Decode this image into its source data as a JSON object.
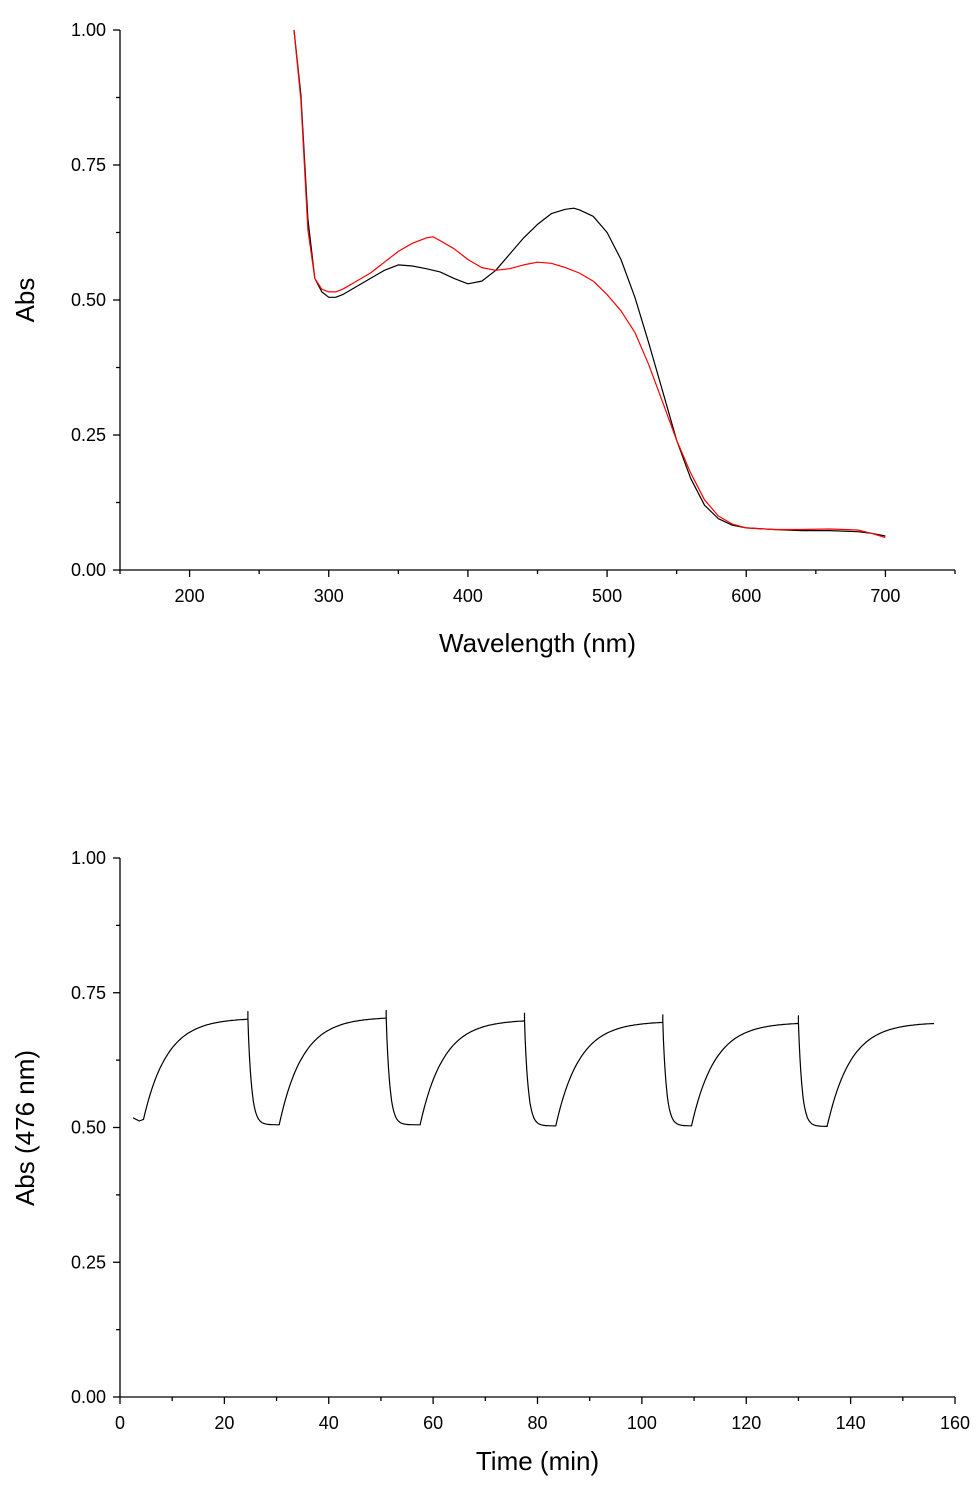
{
  "chart_data": [
    {
      "type": "line",
      "xlabel": "Wavelength (nm)",
      "ylabel": "Abs",
      "xlim": [
        150,
        750
      ],
      "ylim": [
        0,
        1
      ],
      "xticks": [
        "200",
        "300",
        "400",
        "500",
        "600",
        "700"
      ],
      "yticks": [
        "0.00",
        "0.25",
        "0.50",
        "0.75",
        "1.00"
      ],
      "grid": false,
      "series": [
        {
          "color": "#000000",
          "x": [
            275,
            280,
            285,
            290,
            295,
            300,
            305,
            310,
            320,
            330,
            340,
            350,
            360,
            370,
            380,
            390,
            400,
            410,
            420,
            430,
            440,
            450,
            460,
            470,
            476,
            480,
            490,
            500,
            510,
            520,
            530,
            540,
            550,
            560,
            570,
            580,
            590,
            600,
            620,
            640,
            660,
            680,
            690,
            700
          ],
          "y": [
            1.0,
            0.88,
            0.65,
            0.54,
            0.515,
            0.505,
            0.505,
            0.51,
            0.525,
            0.54,
            0.555,
            0.565,
            0.563,
            0.558,
            0.552,
            0.54,
            0.53,
            0.535,
            0.555,
            0.585,
            0.615,
            0.64,
            0.66,
            0.668,
            0.67,
            0.667,
            0.655,
            0.625,
            0.575,
            0.505,
            0.42,
            0.33,
            0.24,
            0.17,
            0.12,
            0.095,
            0.083,
            0.078,
            0.075,
            0.073,
            0.073,
            0.071,
            0.068,
            0.063
          ]
        },
        {
          "color": "#ff0000",
          "x": [
            275,
            280,
            285,
            290,
            295,
            300,
            305,
            310,
            320,
            330,
            340,
            350,
            360,
            370,
            375,
            380,
            390,
            400,
            410,
            420,
            430,
            440,
            450,
            460,
            470,
            480,
            490,
            500,
            510,
            520,
            530,
            540,
            550,
            560,
            570,
            580,
            590,
            600,
            620,
            640,
            660,
            680,
            690,
            700
          ],
          "y": [
            1.0,
            0.87,
            0.63,
            0.54,
            0.52,
            0.515,
            0.515,
            0.52,
            0.535,
            0.55,
            0.57,
            0.59,
            0.605,
            0.615,
            0.617,
            0.61,
            0.595,
            0.575,
            0.56,
            0.555,
            0.558,
            0.565,
            0.57,
            0.568,
            0.56,
            0.55,
            0.535,
            0.51,
            0.48,
            0.44,
            0.38,
            0.31,
            0.24,
            0.18,
            0.13,
            0.1,
            0.085,
            0.078,
            0.075,
            0.075,
            0.076,
            0.074,
            0.068,
            0.06
          ]
        }
      ]
    },
    {
      "type": "line",
      "xlabel": "Time (min)",
      "ylabel": "Abs (476 nm)",
      "xlim": [
        0,
        160
      ],
      "ylim": [
        0,
        1
      ],
      "xticks": [
        "0",
        "20",
        "40",
        "60",
        "80",
        "100",
        "120",
        "140",
        "160"
      ],
      "yticks": [
        "0.00",
        "0.25",
        "0.50",
        "0.75",
        "1.00"
      ],
      "grid": false,
      "series": [
        {
          "color": "#000000",
          "cycles": [
            {
              "on": 4.5,
              "off": 24.5,
              "start": 0.515,
              "plateau": 0.703
            },
            {
              "on": 30.5,
              "off": 51.0,
              "start": 0.505,
              "plateau": 0.705
            },
            {
              "on": 57.5,
              "off": 77.5,
              "start": 0.505,
              "plateau": 0.7
            },
            {
              "on": 83.5,
              "off": 104.0,
              "start": 0.503,
              "plateau": 0.697
            },
            {
              "on": 109.5,
              "off": 130.0,
              "start": 0.503,
              "plateau": 0.695
            },
            {
              "on": 135.5,
              "off": 156.0,
              "start": 0.502,
              "plateau": 0.695
            }
          ],
          "first_point": [
            2.5,
            0.518
          ]
        }
      ]
    }
  ]
}
